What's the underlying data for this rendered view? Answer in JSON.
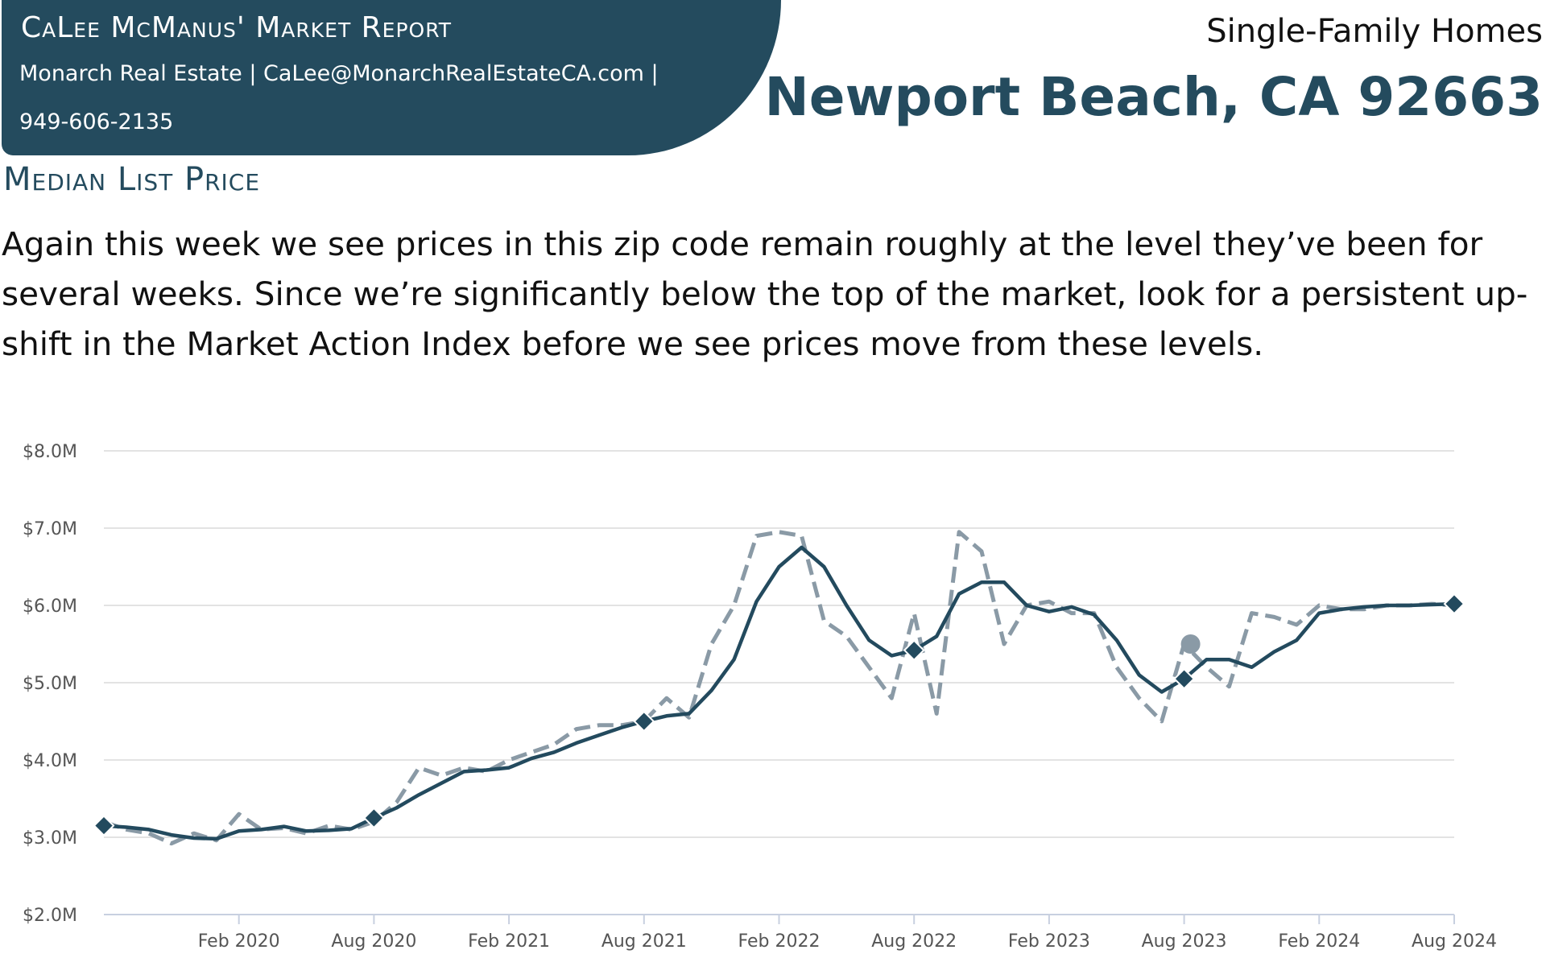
{
  "header": {
    "title": "CaLee McManus' Market Report",
    "contact_line_1": "Monarch Real Estate | CaLee@MonarchRealEstateCA.com |",
    "contact_line_2": "949-606-2135",
    "subtitle": "Single-Family Homes",
    "location": "Newport Beach, CA 92663"
  },
  "section_title": "Median List Price",
  "paragraph": "Again this week we see prices in this zip code remain roughly at the level they’ve been for several weeks. Since we’re significantly below the top of the market, look for a persistent up-shift in the Market Action Index before we see prices move from these levels.",
  "chart_data": {
    "type": "line",
    "x": [
      "2019-08",
      "2019-09",
      "2019-10",
      "2019-11",
      "2019-12",
      "2020-01",
      "2020-02",
      "2020-03",
      "2020-04",
      "2020-05",
      "2020-06",
      "2020-07",
      "2020-08",
      "2020-09",
      "2020-10",
      "2020-11",
      "2020-12",
      "2021-01",
      "2021-02",
      "2021-03",
      "2021-04",
      "2021-05",
      "2021-06",
      "2021-07",
      "2021-08",
      "2021-09",
      "2021-10",
      "2021-11",
      "2021-12",
      "2022-01",
      "2022-02",
      "2022-03",
      "2022-04",
      "2022-05",
      "2022-06",
      "2022-07",
      "2022-08",
      "2022-09",
      "2022-10",
      "2022-11",
      "2022-12",
      "2023-01",
      "2023-02",
      "2023-03",
      "2023-04",
      "2023-05",
      "2023-06",
      "2023-07",
      "2023-08",
      "2023-09",
      "2023-10",
      "2023-11",
      "2023-12",
      "2024-01",
      "2024-02",
      "2024-03",
      "2024-04",
      "2024-05",
      "2024-06",
      "2024-07",
      "2024-08"
    ],
    "series": [
      {
        "color": "#8a9aa6",
        "style": "dashed",
        "values": [
          3200000,
          3100000,
          3050000,
          2920000,
          3050000,
          2960000,
          3300000,
          3100000,
          3120000,
          3050000,
          3150000,
          3100000,
          3200000,
          3450000,
          3900000,
          3800000,
          3900000,
          3850000,
          4000000,
          4100000,
          4200000,
          4400000,
          4450000,
          4450000,
          4500000,
          4800000,
          4550000,
          5500000,
          6000000,
          6900000,
          6950000,
          6900000,
          5800000,
          5600000,
          5200000,
          4800000,
          5900000,
          4600000,
          6950000,
          6700000,
          5500000,
          6000000,
          6050000,
          5900000,
          5900000,
          5200000,
          4800000,
          4500000,
          5500000,
          5200000,
          4950000,
          5900000,
          5850000,
          5750000,
          6000000,
          5950000,
          5950000,
          6000000,
          6000000,
          6020000,
          6000000
        ]
      },
      {
        "color": "#234a5e",
        "style": "solid",
        "values": [
          3150000,
          3130000,
          3100000,
          3030000,
          2990000,
          2980000,
          3080000,
          3100000,
          3140000,
          3080000,
          3090000,
          3110000,
          3250000,
          3380000,
          3550000,
          3700000,
          3850000,
          3870000,
          3900000,
          4020000,
          4100000,
          4220000,
          4320000,
          4420000,
          4500000,
          4570000,
          4600000,
          4900000,
          5300000,
          6050000,
          6500000,
          6750000,
          6500000,
          6000000,
          5550000,
          5350000,
          5420000,
          5600000,
          6150000,
          6300000,
          6300000,
          6000000,
          5920000,
          5980000,
          5880000,
          5550000,
          5100000,
          4880000,
          5050000,
          5300000,
          5300000,
          5200000,
          5400000,
          5550000,
          5900000,
          5950000,
          5980000,
          6000000,
          6000000,
          6010000,
          6020000
        ]
      }
    ],
    "xlim": [
      "2019-08",
      "2024-08"
    ],
    "xticks": [
      {
        "value": "2020-02",
        "label": "Feb 2020"
      },
      {
        "value": "2020-08",
        "label": "Aug 2020"
      },
      {
        "value": "2021-02",
        "label": "Feb 2021"
      },
      {
        "value": "2021-08",
        "label": "Aug 2021"
      },
      {
        "value": "2022-02",
        "label": "Feb 2022"
      },
      {
        "value": "2022-08",
        "label": "Aug 2022"
      },
      {
        "value": "2023-02",
        "label": "Feb 2023"
      },
      {
        "value": "2023-08",
        "label": "Aug 2023"
      },
      {
        "value": "2024-02",
        "label": "Feb 2024"
      },
      {
        "value": "2024-08",
        "label": "Aug 2024"
      }
    ],
    "ylim": [
      2000000,
      8000000
    ],
    "yticks": [
      {
        "value": 2000000,
        "label": "$2.0M"
      },
      {
        "value": 3000000,
        "label": "$3.0M"
      },
      {
        "value": 4000000,
        "label": "$4.0M"
      },
      {
        "value": 5000000,
        "label": "$5.0M"
      },
      {
        "value": 6000000,
        "label": "$6.0M"
      },
      {
        "value": 7000000,
        "label": "$7.0M"
      },
      {
        "value": 8000000,
        "label": "$8.0M"
      }
    ],
    "grid": true
  }
}
